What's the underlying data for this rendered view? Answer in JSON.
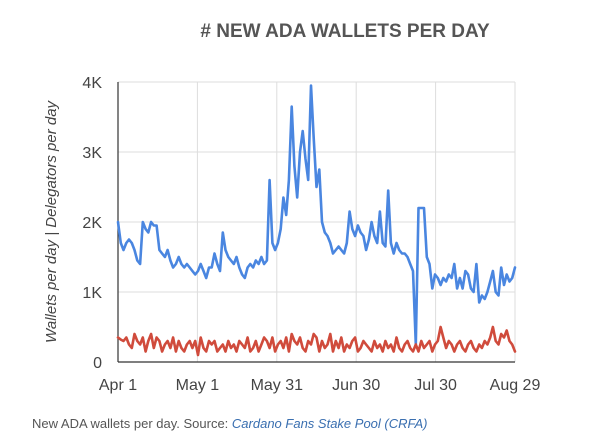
{
  "chart_data": {
    "type": "line",
    "title": "# NEW ADA WALLETS PER DAY",
    "ylabel": "Wallets per day | Delegators per day",
    "xlabel": "",
    "ylim": [
      0,
      4000
    ],
    "y_ticks": [
      "0",
      "1K",
      "2K",
      "3K",
      "4K"
    ],
    "x_ticks": [
      "Apr 1",
      "May 1",
      "May 31",
      "Jun 30",
      "Jul 30",
      "Aug 29"
    ],
    "grid": true,
    "legend": "none",
    "x_start": "Apr 1",
    "x_end": "Aug 29",
    "series": [
      {
        "color": "#4a86e0",
        "values": [
          2000,
          1700,
          1600,
          1700,
          1750,
          1700,
          1600,
          1450,
          1400,
          2000,
          1900,
          1850,
          2000,
          1950,
          1950,
          1600,
          1550,
          1500,
          1600,
          1450,
          1350,
          1400,
          1500,
          1400,
          1350,
          1400,
          1350,
          1300,
          1250,
          1300,
          1400,
          1300,
          1200,
          1350,
          1350,
          1550,
          1400,
          1300,
          1850,
          1600,
          1500,
          1450,
          1400,
          1500,
          1350,
          1250,
          1200,
          1350,
          1400,
          1350,
          1450,
          1400,
          1500,
          1400,
          1450,
          2600,
          1700,
          1600,
          1700,
          1900,
          2350,
          2100,
          2600,
          3650,
          2800,
          2350,
          3000,
          3300,
          2900,
          2600,
          3950,
          3200,
          2500,
          2750,
          2000,
          1850,
          1800,
          1700,
          1550,
          1600,
          1650,
          1600,
          1550,
          1700,
          2150,
          1900,
          1800,
          1950,
          1850,
          1800,
          1600,
          1750,
          2000,
          1800,
          1700,
          2150,
          1700,
          1650,
          2450,
          1700,
          1550,
          1700,
          1600,
          1550,
          1550,
          1500,
          1400,
          1300,
          250,
          2200,
          2200,
          2200,
          1500,
          1400,
          1050,
          1250,
          1200,
          1100,
          1200,
          1150,
          1250,
          1200,
          1400,
          1050,
          1200,
          1050,
          1300,
          1250,
          1050,
          1000,
          1400,
          850,
          950,
          900,
          1000,
          1150,
          1300,
          1000,
          950,
          1350,
          1100,
          1250,
          1150,
          1200,
          1350
        ]
      },
      {
        "color": "#d04b3c",
        "values": [
          350,
          320,
          300,
          350,
          250,
          200,
          400,
          300,
          250,
          350,
          150,
          300,
          400,
          200,
          350,
          300,
          150,
          250,
          300,
          200,
          350,
          150,
          300,
          200,
          150,
          250,
          300,
          200,
          300,
          100,
          350,
          200,
          150,
          300,
          250,
          300,
          150,
          200,
          250,
          150,
          300,
          200,
          250,
          150,
          300,
          250,
          200,
          350,
          150,
          200,
          300,
          150,
          250,
          350,
          300,
          200,
          350,
          150,
          250,
          300,
          200,
          350,
          150,
          400,
          300,
          250,
          350,
          200,
          150,
          300,
          250,
          400,
          350,
          150,
          300,
          200,
          250,
          400,
          150,
          300,
          200,
          350,
          150,
          250,
          200,
          300,
          350,
          150,
          200,
          300,
          250,
          200,
          150,
          300,
          200,
          250,
          150,
          300,
          200,
          250,
          150,
          350,
          200,
          150,
          250,
          300,
          200,
          150,
          250,
          150,
          300,
          200,
          250,
          300,
          150,
          250,
          300,
          500,
          350,
          200,
          300,
          250,
          150,
          250,
          300,
          200,
          150,
          250,
          300,
          200,
          150,
          250,
          200,
          300,
          250,
          350,
          500,
          300,
          250,
          400,
          350,
          450,
          300,
          250,
          150
        ]
      }
    ]
  },
  "caption": {
    "text": "New ADA wallets per day. Source: ",
    "link": "Cardano Fans Stake Pool (CRFA)"
  }
}
